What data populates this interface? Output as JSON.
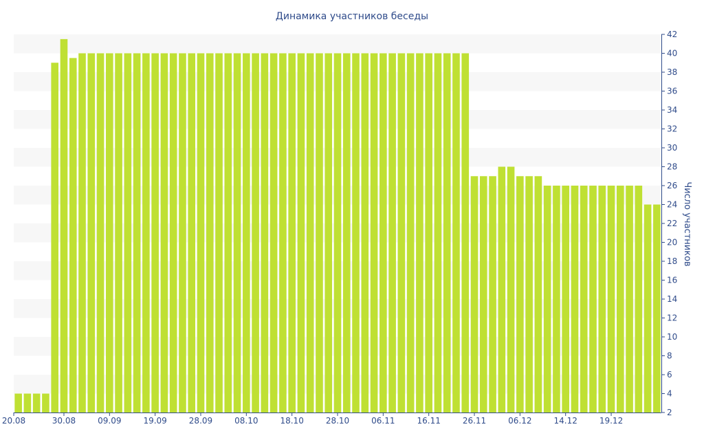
{
  "chart_data": {
    "type": "bar",
    "title": "Динамика участников беседы",
    "ylabel": "Число участников",
    "xlabel": "",
    "ylim": [
      2,
      42
    ],
    "y_ticks": [
      2,
      4,
      6,
      8,
      10,
      12,
      14,
      16,
      18,
      20,
      22,
      24,
      26,
      28,
      30,
      32,
      34,
      36,
      38,
      40,
      42
    ],
    "x_tick_labels": [
      "20.08",
      "30.08",
      "09.09",
      "19.09",
      "28.09",
      "08.10",
      "18.10",
      "28.10",
      "06.11",
      "16.11",
      "26.11",
      "06.12",
      "14.12",
      "19.12"
    ],
    "x_tick_positions": [
      0,
      5.5,
      10.5,
      15.5,
      20.5,
      25.5,
      30.5,
      35.5,
      40.5,
      45.5,
      50.5,
      55.5,
      60.5,
      65.5
    ],
    "y_axis_position": "right",
    "grid": "alternating horizontal bands",
    "colors": {
      "bar": "#bfe033",
      "text": "#2f4b8a",
      "band": "#f7f7f7"
    },
    "values": [
      4,
      4,
      4,
      4,
      39,
      41.5,
      39.5,
      40,
      40,
      40,
      40,
      40,
      40,
      40,
      40,
      40,
      40,
      40,
      40,
      40,
      40,
      40,
      40,
      40,
      40,
      40,
      40,
      40,
      40,
      40,
      40,
      40,
      40,
      40,
      40,
      40,
      40,
      40,
      40,
      40,
      40,
      40,
      40,
      40,
      40,
      40,
      40,
      40,
      40,
      40,
      27,
      27,
      27,
      28,
      28,
      27,
      27,
      27,
      26,
      26,
      26,
      26,
      26,
      26,
      26,
      26,
      26,
      26,
      26,
      24,
      24
    ]
  }
}
